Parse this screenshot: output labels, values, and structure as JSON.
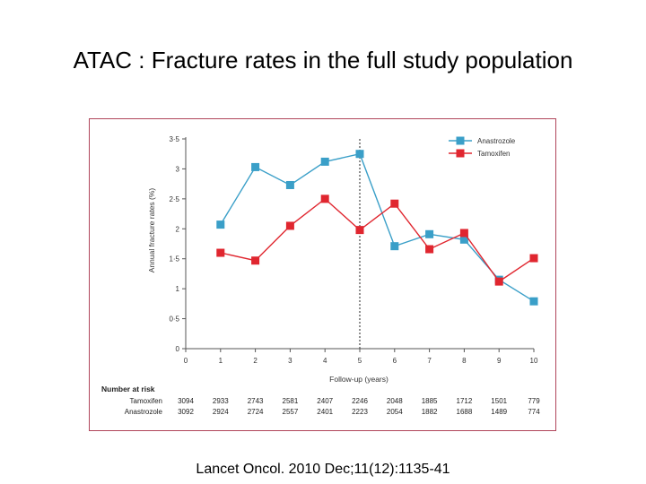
{
  "slide": {
    "title": "ATAC : Fracture rates in the full study population",
    "citation": "Lancet Oncol. 2010 Dec;11(12):1135-41"
  },
  "colors": {
    "anastrozole": "#3a9fc8",
    "tamoxifen": "#e0262f",
    "frame": "#b0455a",
    "axis": "#555555"
  },
  "chart_data": {
    "type": "line",
    "xlabel": "Follow-up (years)",
    "ylabel": "Annual fracture rates (%)",
    "x": [
      1,
      2,
      3,
      4,
      5,
      6,
      7,
      8,
      9,
      10
    ],
    "xlim": [
      0,
      10
    ],
    "ylim": [
      0,
      3.5
    ],
    "x_ticks": [
      "0",
      "1",
      "2",
      "3",
      "4",
      "5",
      "6",
      "7",
      "8",
      "9",
      "10"
    ],
    "y_ticks": [
      0,
      0.5,
      1,
      1.5,
      2,
      2.5,
      3,
      3.5
    ],
    "y_tick_labels": [
      "0",
      "0·5",
      "1",
      "1·5",
      "2",
      "2·5",
      "3",
      "3·5"
    ],
    "series": [
      {
        "name": "Anastrozole",
        "color": "#3a9fc8",
        "values": [
          2.07,
          3.03,
          2.73,
          3.12,
          3.25,
          1.71,
          1.91,
          1.82,
          1.15,
          0.79
        ]
      },
      {
        "name": "Tamoxifen",
        "color": "#e0262f",
        "values": [
          1.6,
          1.47,
          2.05,
          2.5,
          1.98,
          2.42,
          1.66,
          1.93,
          1.12,
          1.51
        ]
      }
    ],
    "reference_line": {
      "x": 5,
      "style": "dashed"
    },
    "legend": "top-right",
    "risk_table": {
      "header": "Number at risk",
      "columns": [
        "0",
        "1",
        "2",
        "3",
        "4",
        "5",
        "6",
        "7",
        "8",
        "9",
        "10"
      ],
      "rows": [
        {
          "label": "Tamoxifen",
          "values": [
            "3094",
            "2933",
            "2743",
            "2581",
            "2407",
            "2246",
            "2048",
            "1885",
            "1712",
            "1501",
            "779"
          ]
        },
        {
          "label": "Anastrozole",
          "values": [
            "3092",
            "2924",
            "2724",
            "2557",
            "2401",
            "2223",
            "2054",
            "1882",
            "1688",
            "1489",
            "774"
          ]
        }
      ]
    }
  }
}
